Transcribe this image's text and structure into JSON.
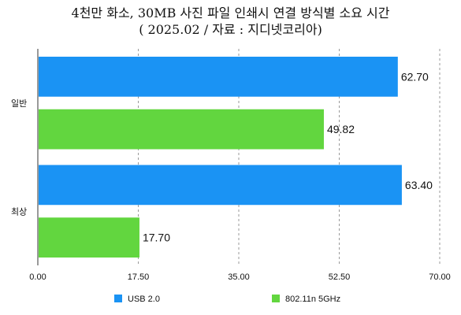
{
  "chart_data": {
    "type": "bar",
    "orientation": "horizontal",
    "title": "4천만 화소, 30MB 사진 파일 인쇄시 연결 방식별 소요 시간",
    "subtitle": "( 2025.02 / 자료 : 지디넷코리아)",
    "categories": [
      "일반",
      "최상"
    ],
    "series": [
      {
        "name": "USB 2.0",
        "color": "#1a93f4",
        "values": [
          62.7,
          63.4
        ]
      },
      {
        "name": "802.11n 5GHz",
        "color": "#62d63f",
        "values": [
          49.82,
          17.7
        ]
      }
    ],
    "value_labels": [
      [
        "62.70",
        "63.40"
      ],
      [
        "49.82",
        "17.70"
      ]
    ],
    "xlim": [
      0,
      70
    ],
    "xticks": [
      0,
      17.5,
      35,
      52.5,
      70
    ],
    "xtick_labels": [
      "0.00",
      "17.50",
      "35.00",
      "52.50",
      "70.00"
    ],
    "xlabel": "",
    "ylabel": "",
    "grid": "vertical-dashed",
    "legend_position": "bottom"
  }
}
